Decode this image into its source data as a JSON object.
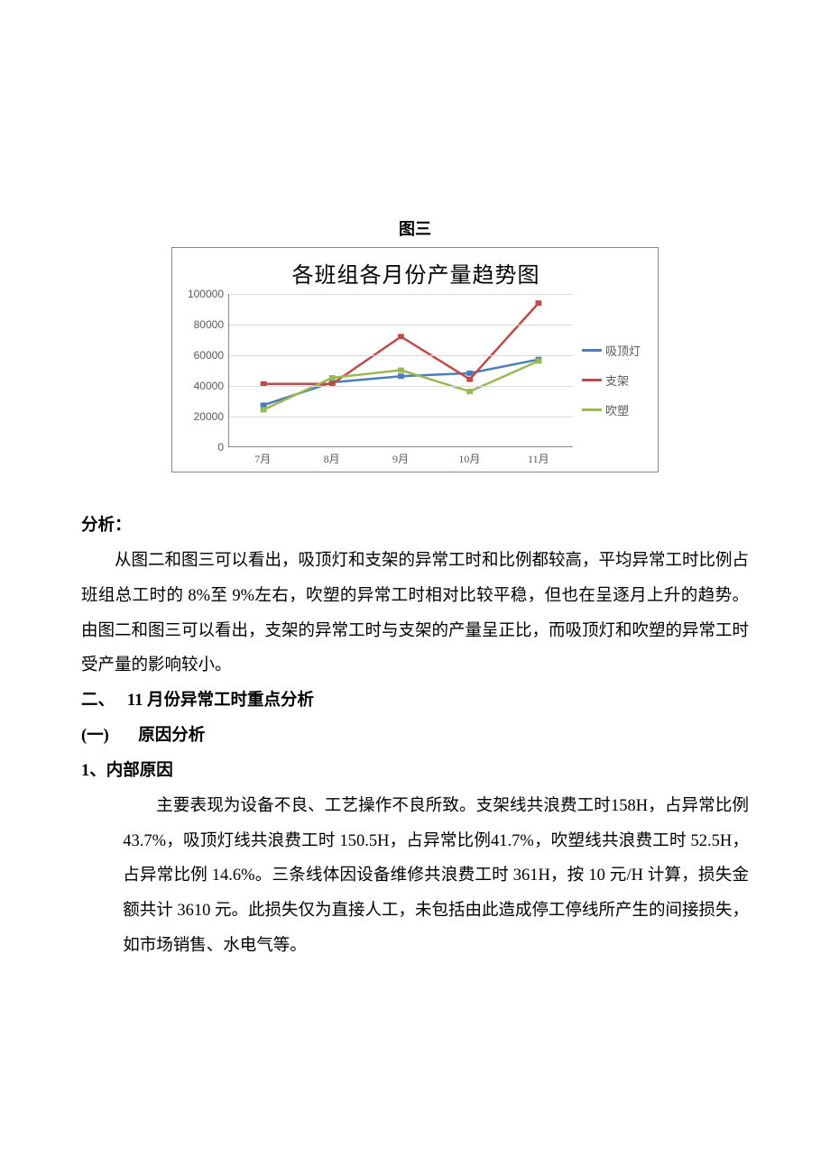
{
  "figure_caption": "图三",
  "chart": {
    "type": "line",
    "title": "各班组各月份产量趋势图",
    "categories": [
      "7月",
      "8月",
      "9月",
      "10月",
      "11月"
    ],
    "ylim": [
      0,
      100000
    ],
    "ytick_step": 20000,
    "yticks": [
      0,
      20000,
      40000,
      60000,
      80000,
      100000
    ],
    "grid_color": "#d9d9d9",
    "axis_color": "#888888",
    "background_color": "#ffffff",
    "title_fontsize": 24,
    "label_fontsize": 12,
    "line_width": 2.5,
    "series": [
      {
        "name": "吸顶灯",
        "color": "#4a7ebb",
        "values": [
          27000,
          42000,
          46000,
          48000,
          57000
        ]
      },
      {
        "name": "支架",
        "color": "#be4b48",
        "values": [
          41000,
          41000,
          72000,
          44000,
          94000
        ]
      },
      {
        "name": "吹塑",
        "color": "#98b954",
        "values": [
          24000,
          45000,
          50000,
          36000,
          56000
        ]
      }
    ]
  },
  "text": {
    "analysis_label": "分析：",
    "analysis_para": "从图二和图三可以看出，吸顶灯和支架的异常工时和比例都较高，平均异常工时比例占班组总工时的 8%至 9%左右，吹塑的异常工时相对比较平稳，但也在呈逐月上升的趋势。由图二和图三可以看出，支架的异常工时与支架的产量呈正比，而吸顶灯和吹塑的异常工时受产量的影响较小。",
    "h2_num": "二、",
    "h2_title": "11 月份异常工时重点分析",
    "h3_num": "(一)",
    "h3_title": "原因分析",
    "h4": "1、内部原因",
    "internal_para": "主要表现为设备不良、工艺操作不良所致。支架线共浪费工时158H，占异常比例 43.7%，吸顶灯线共浪费工时 150.5H，占异常比例41.7%，吹塑线共浪费工时 52.5H，占异常比例 14.6%。三条线体因设备维修共浪费工时 361H，按 10 元/H 计算，损失金额共计 3610 元。此损失仅为直接人工，未包括由此造成停工停线所产生的间接损失，如市场销售、水电气等。"
  }
}
